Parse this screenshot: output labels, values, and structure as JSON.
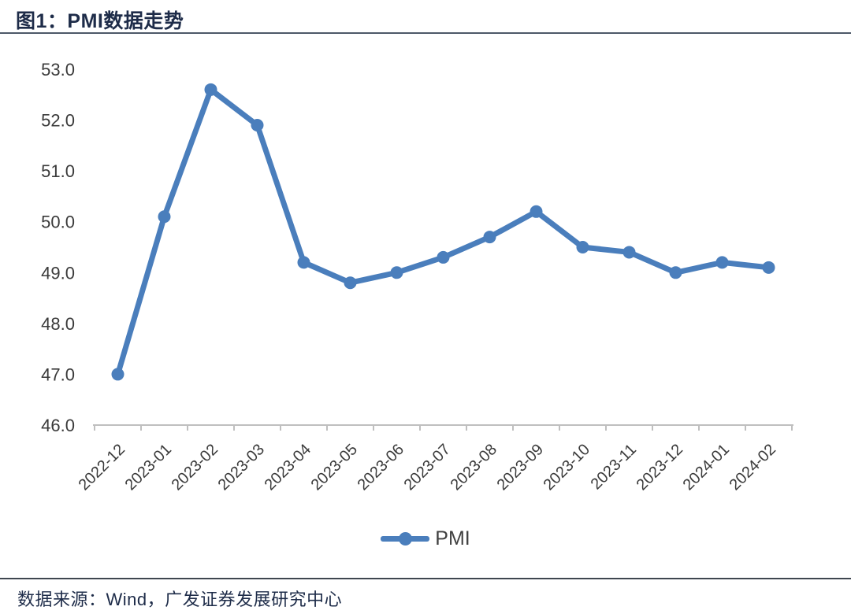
{
  "header": {
    "title": "图1：PMI数据走势"
  },
  "chart_data": {
    "type": "line",
    "title": "图1：PMI数据走势",
    "categories": [
      "2022-12",
      "2023-01",
      "2023-02",
      "2023-03",
      "2023-04",
      "2023-05",
      "2023-06",
      "2023-07",
      "2023-08",
      "2023-09",
      "2023-10",
      "2023-11",
      "2023-12",
      "2024-01",
      "2024-02"
    ],
    "series": [
      {
        "name": "PMI",
        "values": [
          47.0,
          50.1,
          52.6,
          51.9,
          49.2,
          48.8,
          49.0,
          49.3,
          49.7,
          50.2,
          49.5,
          49.4,
          49.0,
          49.2,
          49.1
        ]
      }
    ],
    "xlabel": "",
    "ylabel": "",
    "ylim": [
      46.0,
      53.0
    ],
    "ytick_step": 1.0,
    "ytick_decimals": 1,
    "grid": false,
    "legend_position": "bottom-center",
    "marker": "circle",
    "line_color": "#4a7ebc",
    "axis_color": "#bfbfbf",
    "tick_label_color": "#3a3a3a"
  },
  "legend": {
    "label": "PMI"
  },
  "footer": {
    "source": "数据来源：Wind，广发证券发展研究中心"
  }
}
